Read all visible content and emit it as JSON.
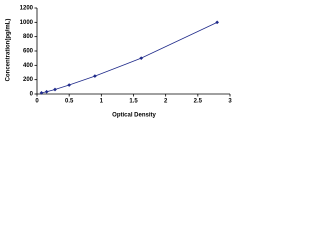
{
  "chart_data": {
    "type": "scatter",
    "x_label": "Optical Density",
    "y_label": "Concentration(pg/mL)",
    "series": [
      {
        "color": "#1f2a8a",
        "x": [
          0.07,
          0.15,
          0.28,
          0.5,
          0.9,
          1.62,
          2.8
        ],
        "values": [
          15.6,
          31.2,
          62.5,
          125,
          250,
          500,
          1000
        ]
      }
    ],
    "xlim": [
      0,
      3
    ],
    "xticks": [
      0,
      0.5,
      1,
      1.5,
      2,
      2.5,
      3
    ],
    "ylim": [
      0,
      1200
    ],
    "yticks": [
      0,
      200,
      400,
      600,
      800,
      1000,
      1200
    ],
    "line": true
  }
}
